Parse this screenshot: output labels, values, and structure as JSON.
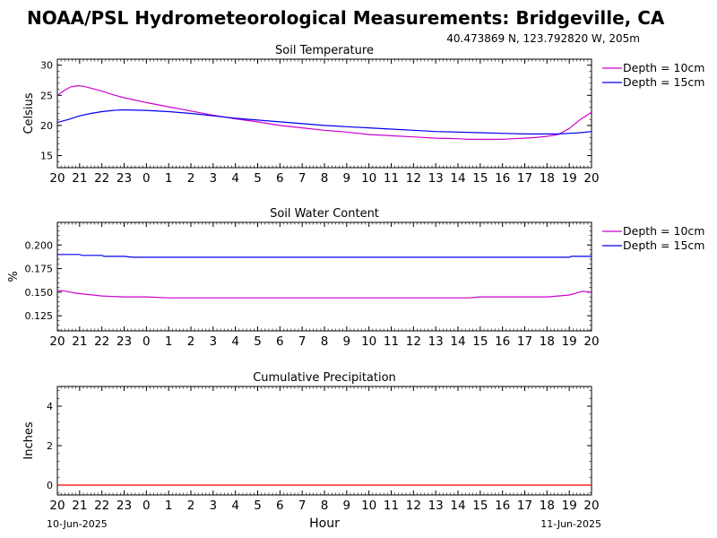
{
  "header": {
    "title": "NOAA/PSL Hydrometeorological Measurements: Bridgeville, CA",
    "location": "40.473869 N, 123.792820 W, 205m"
  },
  "footer": {
    "start_date": "10-Jun-2025",
    "end_date": "11-Jun-2025",
    "xlabel": "Hour"
  },
  "colors": {
    "depth10": "#cc00cc",
    "depth15": "#0000ee",
    "precip": "#ee0000"
  },
  "chart_data": [
    {
      "type": "line",
      "title": "Soil Temperature",
      "xlabel": "",
      "ylabel": "Celsius",
      "x_tick_labels": [
        "20",
        "21",
        "22",
        "23",
        "0",
        "1",
        "2",
        "3",
        "4",
        "5",
        "6",
        "7",
        "8",
        "9",
        "10",
        "11",
        "12",
        "13",
        "14",
        "15",
        "16",
        "17",
        "18",
        "19",
        "20"
      ],
      "xlim": [
        0,
        24
      ],
      "ylim": [
        13,
        31
      ],
      "y_ticks": [
        15,
        20,
        25,
        30
      ],
      "y_tick_labels": [
        "15",
        "20",
        "25",
        "30"
      ],
      "legend": "right",
      "series": [
        {
          "name": "Depth = 10cm",
          "color": "#cc00cc",
          "x": [
            0,
            0.3,
            0.6,
            0.9,
            1.2,
            1.5,
            2,
            2.5,
            3,
            4,
            5,
            6,
            7,
            8,
            9,
            10,
            11,
            12,
            13,
            14,
            15,
            16,
            17,
            18,
            18.5,
            19,
            19.5,
            20,
            20.5,
            21,
            21.5,
            22,
            22.5,
            23,
            23.5,
            24
          ],
          "y": [
            25.0,
            25.8,
            26.4,
            26.6,
            26.5,
            26.2,
            25.7,
            25.1,
            24.6,
            23.8,
            23.1,
            22.4,
            21.7,
            21.1,
            20.6,
            20.0,
            19.6,
            19.2,
            18.9,
            18.5,
            18.3,
            18.1,
            17.9,
            17.8,
            17.7,
            17.7,
            17.7,
            17.7,
            17.8,
            17.9,
            18.0,
            18.2,
            18.5,
            19.5,
            21.0,
            22.2
          ]
        },
        {
          "name": "Depth = 15cm",
          "color": "#0000ee",
          "x": [
            0,
            0.5,
            1,
            1.5,
            2,
            2.5,
            3,
            4,
            5,
            6,
            7,
            8,
            9,
            10,
            11,
            12,
            13,
            14,
            15,
            16,
            17,
            18,
            19,
            20,
            21,
            22,
            22.5,
            23,
            23.5,
            24
          ],
          "y": [
            20.5,
            21.0,
            21.6,
            22.0,
            22.3,
            22.5,
            22.6,
            22.5,
            22.3,
            22.0,
            21.6,
            21.2,
            20.9,
            20.6,
            20.3,
            20.0,
            19.8,
            19.6,
            19.4,
            19.2,
            19.0,
            18.9,
            18.8,
            18.7,
            18.6,
            18.6,
            18.6,
            18.7,
            18.8,
            19.0
          ]
        }
      ]
    },
    {
      "type": "line",
      "title": "Soil Water Content",
      "xlabel": "",
      "ylabel": "%",
      "x_tick_labels": [
        "20",
        "21",
        "22",
        "23",
        "0",
        "1",
        "2",
        "3",
        "4",
        "5",
        "6",
        "7",
        "8",
        "9",
        "10",
        "11",
        "12",
        "13",
        "14",
        "15",
        "16",
        "17",
        "18",
        "19",
        "20"
      ],
      "xlim": [
        0,
        24
      ],
      "ylim": [
        0.109,
        0.224
      ],
      "y_ticks": [
        0.125,
        0.15,
        0.175,
        0.2
      ],
      "y_tick_labels": [
        "0.125",
        "0.150",
        "0.175",
        "0.200"
      ],
      "legend": "right",
      "series": [
        {
          "name": "Depth = 10cm",
          "color": "#cc00cc",
          "x": [
            0,
            0.4,
            0.8,
            1.2,
            1.6,
            2,
            3,
            4,
            5,
            6,
            8,
            10,
            12,
            14,
            16,
            18,
            18.5,
            19,
            20,
            21,
            22,
            22.5,
            23,
            23.3,
            23.6,
            24
          ],
          "y": [
            0.152,
            0.151,
            0.149,
            0.148,
            0.147,
            0.146,
            0.145,
            0.145,
            0.144,
            0.144,
            0.144,
            0.144,
            0.144,
            0.144,
            0.144,
            0.144,
            0.144,
            0.145,
            0.145,
            0.145,
            0.145,
            0.146,
            0.147,
            0.149,
            0.151,
            0.15
          ]
        },
        {
          "name": "Depth = 15cm",
          "color": "#0000ee",
          "x": [
            0,
            1,
            1.1,
            2,
            2.1,
            3,
            3.4,
            5,
            8,
            12,
            16,
            20,
            23,
            23.1,
            24
          ],
          "y": [
            0.19,
            0.19,
            0.189,
            0.189,
            0.188,
            0.188,
            0.187,
            0.187,
            0.187,
            0.187,
            0.187,
            0.187,
            0.187,
            0.188,
            0.188
          ]
        }
      ]
    },
    {
      "type": "line",
      "title": "Cumulative Precipitation",
      "xlabel": "Hour",
      "ylabel": "Inches",
      "x_tick_labels": [
        "20",
        "21",
        "22",
        "23",
        "0",
        "1",
        "2",
        "3",
        "4",
        "5",
        "6",
        "7",
        "8",
        "9",
        "10",
        "11",
        "12",
        "13",
        "14",
        "15",
        "16",
        "17",
        "18",
        "19",
        "20"
      ],
      "xlim": [
        0,
        24
      ],
      "ylim": [
        -0.5,
        5
      ],
      "y_ticks": [
        0,
        2,
        4
      ],
      "y_tick_labels": [
        "0",
        "2",
        "4"
      ],
      "series": [
        {
          "name": "",
          "color": "#ee0000",
          "x": [
            0,
            24
          ],
          "y": [
            0,
            0
          ]
        }
      ]
    }
  ]
}
